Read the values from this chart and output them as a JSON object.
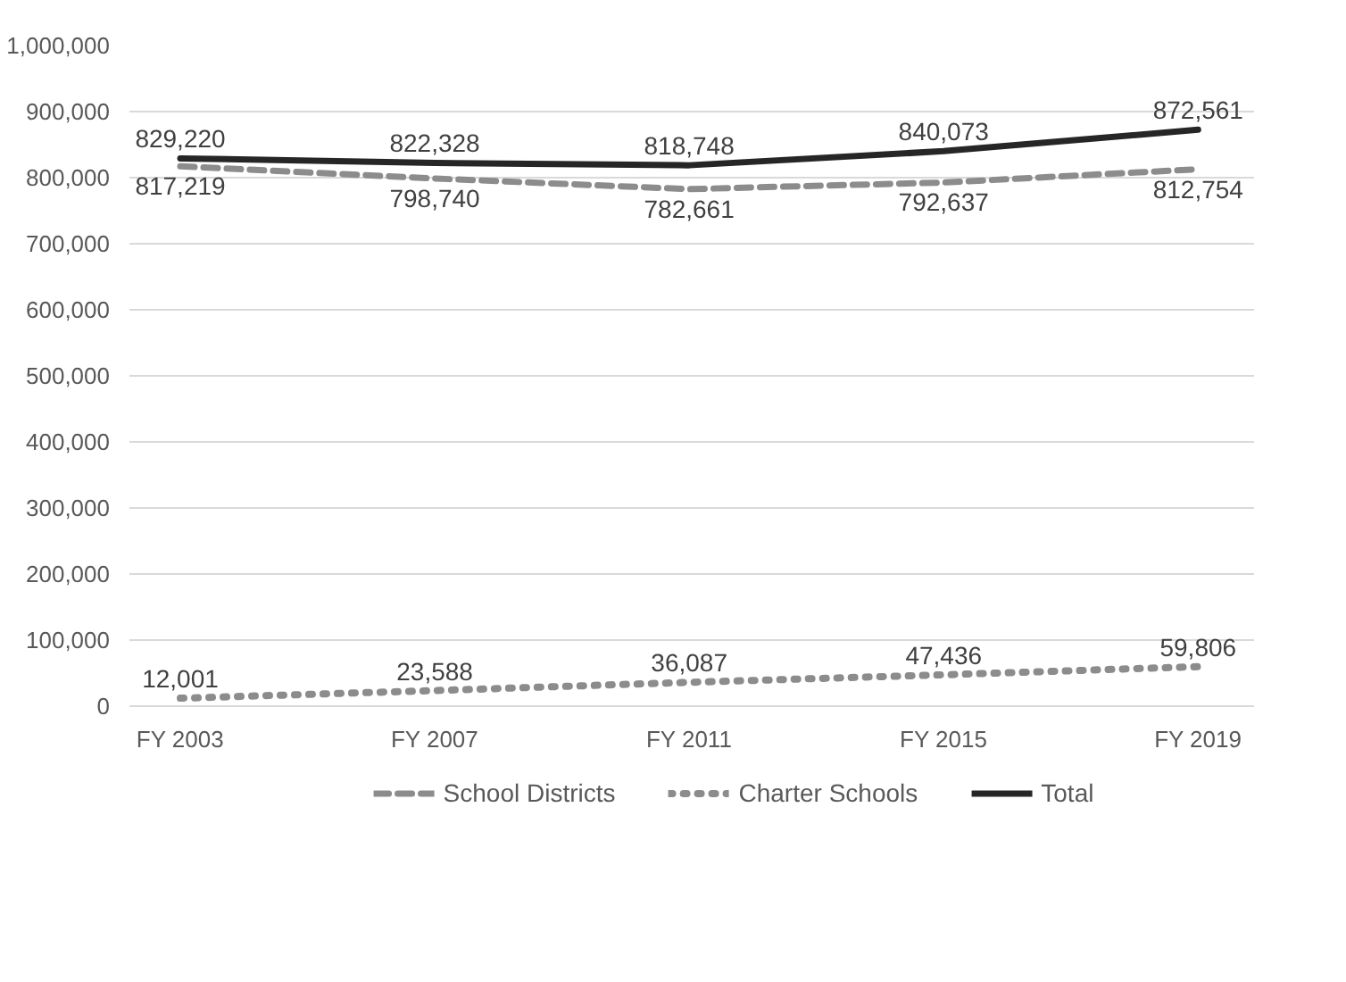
{
  "chart_data": {
    "type": "line",
    "categories": [
      "FY 2003",
      "FY 2007",
      "FY 2011",
      "FY 2015",
      "FY 2019"
    ],
    "series": [
      {
        "name": "School Districts",
        "color": "#8c8c8c",
        "line_style": "dashed",
        "values": [
          817219,
          798740,
          782661,
          792637,
          812754
        ],
        "value_labels": [
          "817,219",
          "798,740",
          "782,661",
          "792,637",
          "812,754"
        ]
      },
      {
        "name": "Charter Schools",
        "color": "#8c8c8c",
        "line_style": "dotted",
        "values": [
          12001,
          23588,
          36087,
          47436,
          59806
        ],
        "value_labels": [
          "12,001",
          "23,588",
          "36,087",
          "47,436",
          "59,806"
        ]
      },
      {
        "name": "Total",
        "color": "#262626",
        "line_style": "solid",
        "values": [
          829220,
          822328,
          818748,
          840073,
          872561
        ],
        "value_labels": [
          "829,220",
          "822,328",
          "818,748",
          "840,073",
          "872,561"
        ]
      }
    ],
    "ylim": [
      0,
      1000000
    ],
    "yticks": [
      {
        "value": 0,
        "label": "0"
      },
      {
        "value": 100000,
        "label": "100,000"
      },
      {
        "value": 200000,
        "label": "200,000"
      },
      {
        "value": 300000,
        "label": "300,000"
      },
      {
        "value": 400000,
        "label": "400,000"
      },
      {
        "value": 500000,
        "label": "500,000"
      },
      {
        "value": 600000,
        "label": "600,000"
      },
      {
        "value": 700000,
        "label": "700,000"
      },
      {
        "value": 800000,
        "label": "800,000"
      },
      {
        "value": 900000,
        "label": "900,000"
      },
      {
        "value": 1000000,
        "label": "1,000,000"
      }
    ],
    "grid": "y",
    "legend": "bottom"
  }
}
